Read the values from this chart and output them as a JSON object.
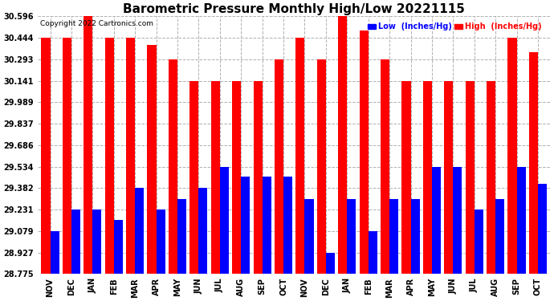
{
  "title": "Barometric Pressure Monthly High/Low 20221115",
  "copyright": "Copyright 2022 Cartronics.com",
  "legend_low": "Low  (Inches/Hg)",
  "legend_high": "High  (Inches/Hg)",
  "months": [
    "NOV",
    "DEC",
    "JAN",
    "FEB",
    "MAR",
    "APR",
    "MAY",
    "JUN",
    "JUL",
    "AUG",
    "SEP",
    "OCT",
    "NOV",
    "DEC",
    "JAN",
    "FEB",
    "MAR",
    "APR",
    "MAY",
    "JUN",
    "JUL",
    "AUG",
    "SEP",
    "OCT"
  ],
  "high_values": [
    30.444,
    30.444,
    30.596,
    30.444,
    30.444,
    30.395,
    30.293,
    30.141,
    30.141,
    30.141,
    30.141,
    30.293,
    30.444,
    30.293,
    30.596,
    30.493,
    30.293,
    30.141,
    30.141,
    30.141,
    30.141,
    30.141,
    30.444,
    30.341
  ],
  "low_values": [
    29.079,
    29.231,
    29.231,
    29.155,
    29.382,
    29.231,
    29.307,
    29.382,
    29.534,
    29.462,
    29.462,
    29.462,
    29.307,
    28.927,
    29.307,
    29.079,
    29.307,
    29.307,
    29.534,
    29.534,
    29.231,
    29.307,
    29.534,
    29.41
  ],
  "ylim_min": 28.775,
  "ylim_max": 30.596,
  "yticks": [
    28.775,
    28.927,
    29.079,
    29.231,
    29.382,
    29.534,
    29.686,
    29.837,
    29.989,
    30.141,
    30.293,
    30.444,
    30.596
  ],
  "bar_color_high": "#ff0000",
  "bar_color_low": "#0000ff",
  "bg_color": "#ffffff",
  "grid_color": "#b0b0b0",
  "title_fontsize": 11,
  "tick_fontsize": 7,
  "label_fontsize": 6.5
}
